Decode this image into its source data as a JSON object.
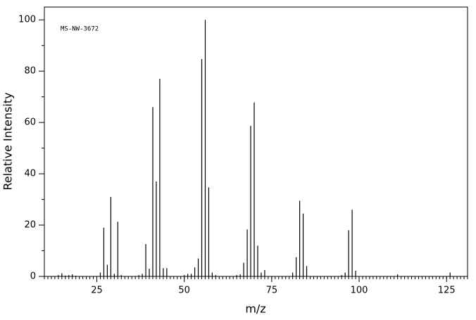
{
  "chart_data": {
    "type": "stick",
    "annotation": "MS-NW-3672",
    "xlabel": "m/z",
    "ylabel": "Relative Intensity",
    "x": [
      14,
      15,
      16,
      17,
      18,
      19,
      26,
      27,
      28,
      29,
      30,
      31,
      32,
      37,
      38,
      39,
      40,
      41,
      42,
      43,
      44,
      45,
      50,
      51,
      52,
      53,
      54,
      55,
      56,
      57,
      58,
      59,
      65,
      66,
      67,
      68,
      69,
      70,
      71,
      72,
      73,
      81,
      82,
      83,
      84,
      85,
      95,
      96,
      97,
      98,
      99,
      111,
      126
    ],
    "values": [
      0.5,
      1.2,
      0.3,
      0.5,
      0.8,
      0.3,
      1.5,
      19,
      4.5,
      31,
      1,
      21.3,
      0.5,
      0.5,
      1,
      12.6,
      3,
      66,
      37,
      77,
      3.2,
      3.2,
      0.5,
      1,
      1,
      3.5,
      7,
      84.7,
      100,
      34.7,
      1.5,
      0.5,
      0.5,
      0.8,
      5.3,
      18.3,
      58.7,
      67.8,
      12,
      1.5,
      2.5,
      1.5,
      7.5,
      29.5,
      24.5,
      4,
      0.5,
      1.5,
      18,
      26,
      2.2,
      0.8,
      1.5
    ],
    "color": "#000000",
    "xlim": [
      10,
      131
    ],
    "ylim": [
      0,
      105
    ],
    "xticks": [
      25,
      50,
      75,
      100,
      125
    ],
    "yticks": [
      0,
      20,
      40,
      60,
      80,
      100
    ]
  }
}
